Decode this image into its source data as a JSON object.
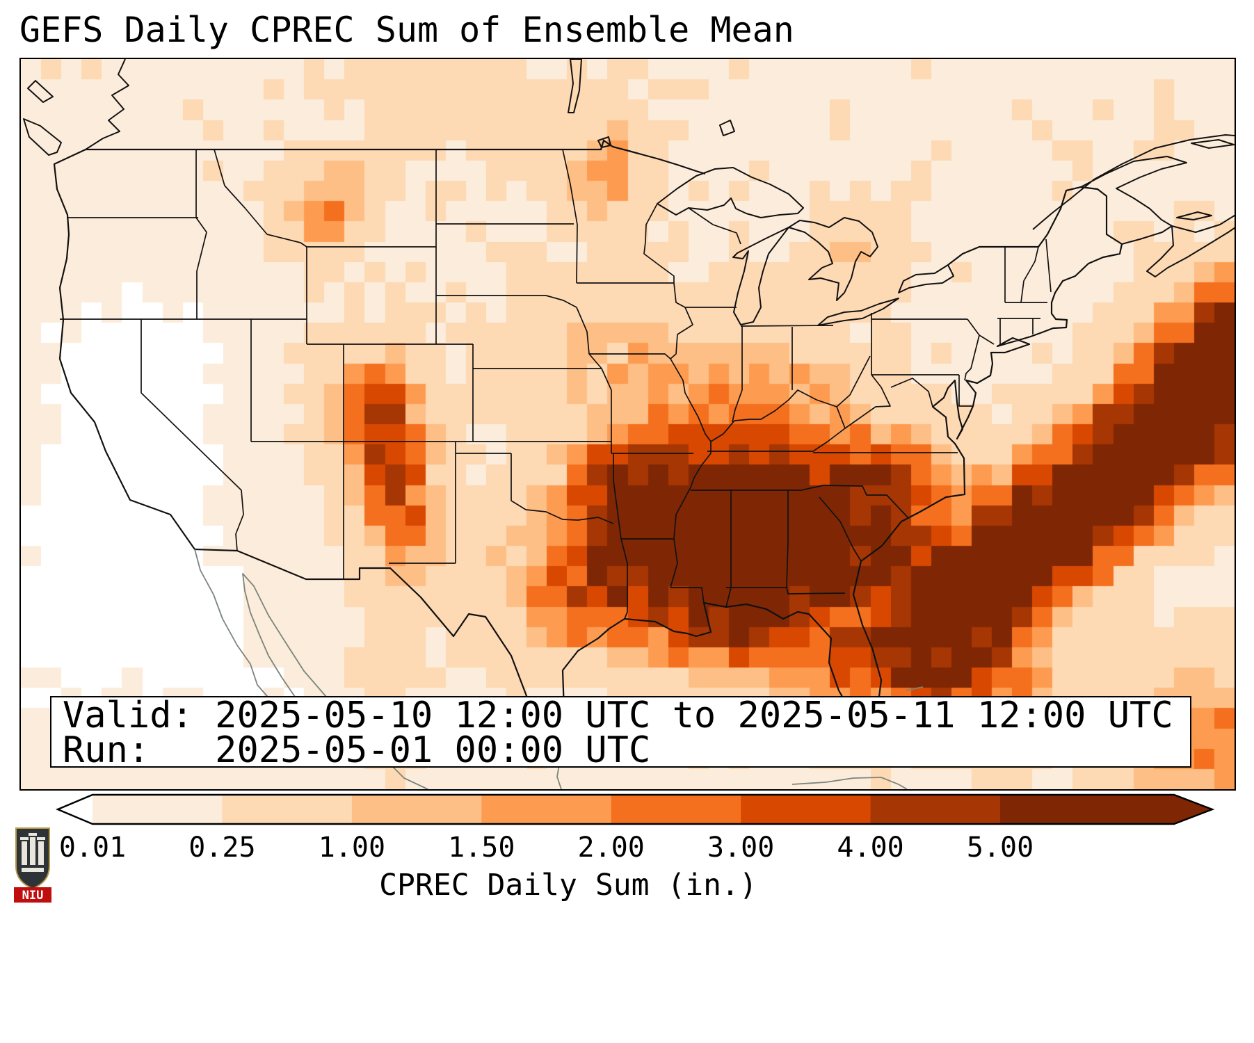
{
  "title": "GEFS Daily CPREC Sum of Ensemble Mean",
  "info_box": {
    "valid_line": "Valid: 2025-05-10 12:00 UTC to 2025-05-11 12:00 UTC",
    "run_line": "Run:   2025-05-01 00:00 UTC"
  },
  "colorbar": {
    "label": "CPREC Daily Sum (in.)",
    "tick_labels": [
      "0.01",
      "0.25",
      "1.00",
      "1.50",
      "2.00",
      "3.00",
      "4.00",
      "5.00"
    ],
    "under_color": "#ffffff",
    "over_color": "#7f2704",
    "segment_colors": [
      "#fcecdb",
      "#fdd9b4",
      "#fdbf86",
      "#fd9c51",
      "#f4701e",
      "#d94801",
      "#a63603"
    ]
  },
  "logo": {
    "text": "NIU"
  },
  "chart_data": {
    "type": "heatmap",
    "title": "GEFS Daily CPREC Sum of Ensemble Mean",
    "units": "inches",
    "valid": "2025-05-10 12:00 UTC to 2025-05-11 12:00 UTC",
    "run": "2025-05-01 00:00 UTC",
    "region": "CONUS equirectangular, lon -126.5 to -61, lat 52.7 to 22.7",
    "levels_in": [
      0.01,
      0.25,
      1.0,
      1.5,
      2.0,
      3.0,
      4.0,
      5.0
    ],
    "colors": [
      "#ffffff",
      "#fcecdb",
      "#fdd9b4",
      "#fdbf86",
      "#fd9c51",
      "#f4701e",
      "#d94801",
      "#a63603",
      "#7f2704"
    ],
    "grid": {
      "nx": 60,
      "ny": 36
    },
    "base_in": 0.2,
    "field_blobs": [
      [
        3.5,
        15,
        3.5,
        6,
        -0.22
      ],
      [
        7,
        24,
        3,
        5,
        -0.2
      ],
      [
        11,
        31,
        4,
        4,
        -0.18
      ],
      [
        1,
        28,
        2.5,
        6,
        -0.2
      ],
      [
        8,
        14,
        2,
        3,
        -0.12
      ],
      [
        32.5,
        23.5,
        3.2,
        2.6,
        5.8
      ],
      [
        35.5,
        25,
        2.6,
        2.2,
        5.2
      ],
      [
        36,
        20,
        3.8,
        1.7,
        3.4
      ],
      [
        39.5,
        23,
        2.6,
        2.2,
        4.4
      ],
      [
        43.5,
        24.5,
        1.8,
        1.5,
        3.0
      ],
      [
        29.5,
        21.5,
        2.2,
        2.2,
        3.2
      ],
      [
        36.5,
        16,
        3,
        1.8,
        1.5
      ],
      [
        43,
        19.8,
        2,
        1.4,
        2.2
      ],
      [
        17.2,
        16.8,
        1.5,
        1.9,
        3.0
      ],
      [
        17.8,
        20,
        1.3,
        1.7,
        2.6
      ],
      [
        18.6,
        23,
        1.2,
        1.8,
        1.6
      ],
      [
        14.2,
        7.6,
        1.2,
        1.2,
        1.7
      ],
      [
        15.6,
        5.4,
        1.1,
        0.9,
        1.1
      ],
      [
        28.6,
        4.8,
        1.4,
        1.9,
        1.5
      ],
      [
        29.5,
        14.5,
        3.5,
        2.5,
        1.0
      ],
      [
        41,
        9,
        1.4,
        1.3,
        1.0
      ],
      [
        25,
        25.5,
        2.2,
        2,
        1.1
      ],
      [
        27.8,
        26.3,
        1.7,
        1.7,
        1.9
      ],
      [
        40.8,
        28.3,
        1.2,
        2.2,
        2.2
      ],
      [
        35,
        28,
        2.5,
        1.2,
        1.6
      ],
      [
        44.5,
        28.8,
        1.9,
        1.6,
        5.0
      ],
      [
        46.5,
        26.3,
        1.9,
        1.6,
        6.5
      ],
      [
        49,
        23.8,
        1.9,
        1.7,
        7.2
      ],
      [
        52,
        21.3,
        2.0,
        1.8,
        7.4
      ],
      [
        55,
        18.8,
        2.0,
        1.8,
        7.4
      ],
      [
        58,
        16.3,
        2.1,
        1.9,
        7.2
      ],
      [
        61,
        13.5,
        2.4,
        2.2,
        7.0
      ],
      [
        47,
        30.5,
        2.5,
        1.5,
        2.0
      ],
      [
        58,
        33,
        3,
        2.5,
        1.8
      ],
      [
        39,
        30.5,
        2,
        1.2,
        0.9
      ],
      [
        17.5,
        30,
        1,
        2.5,
        0.45
      ],
      [
        20,
        1.5,
        3,
        1.5,
        0.35
      ]
    ]
  }
}
